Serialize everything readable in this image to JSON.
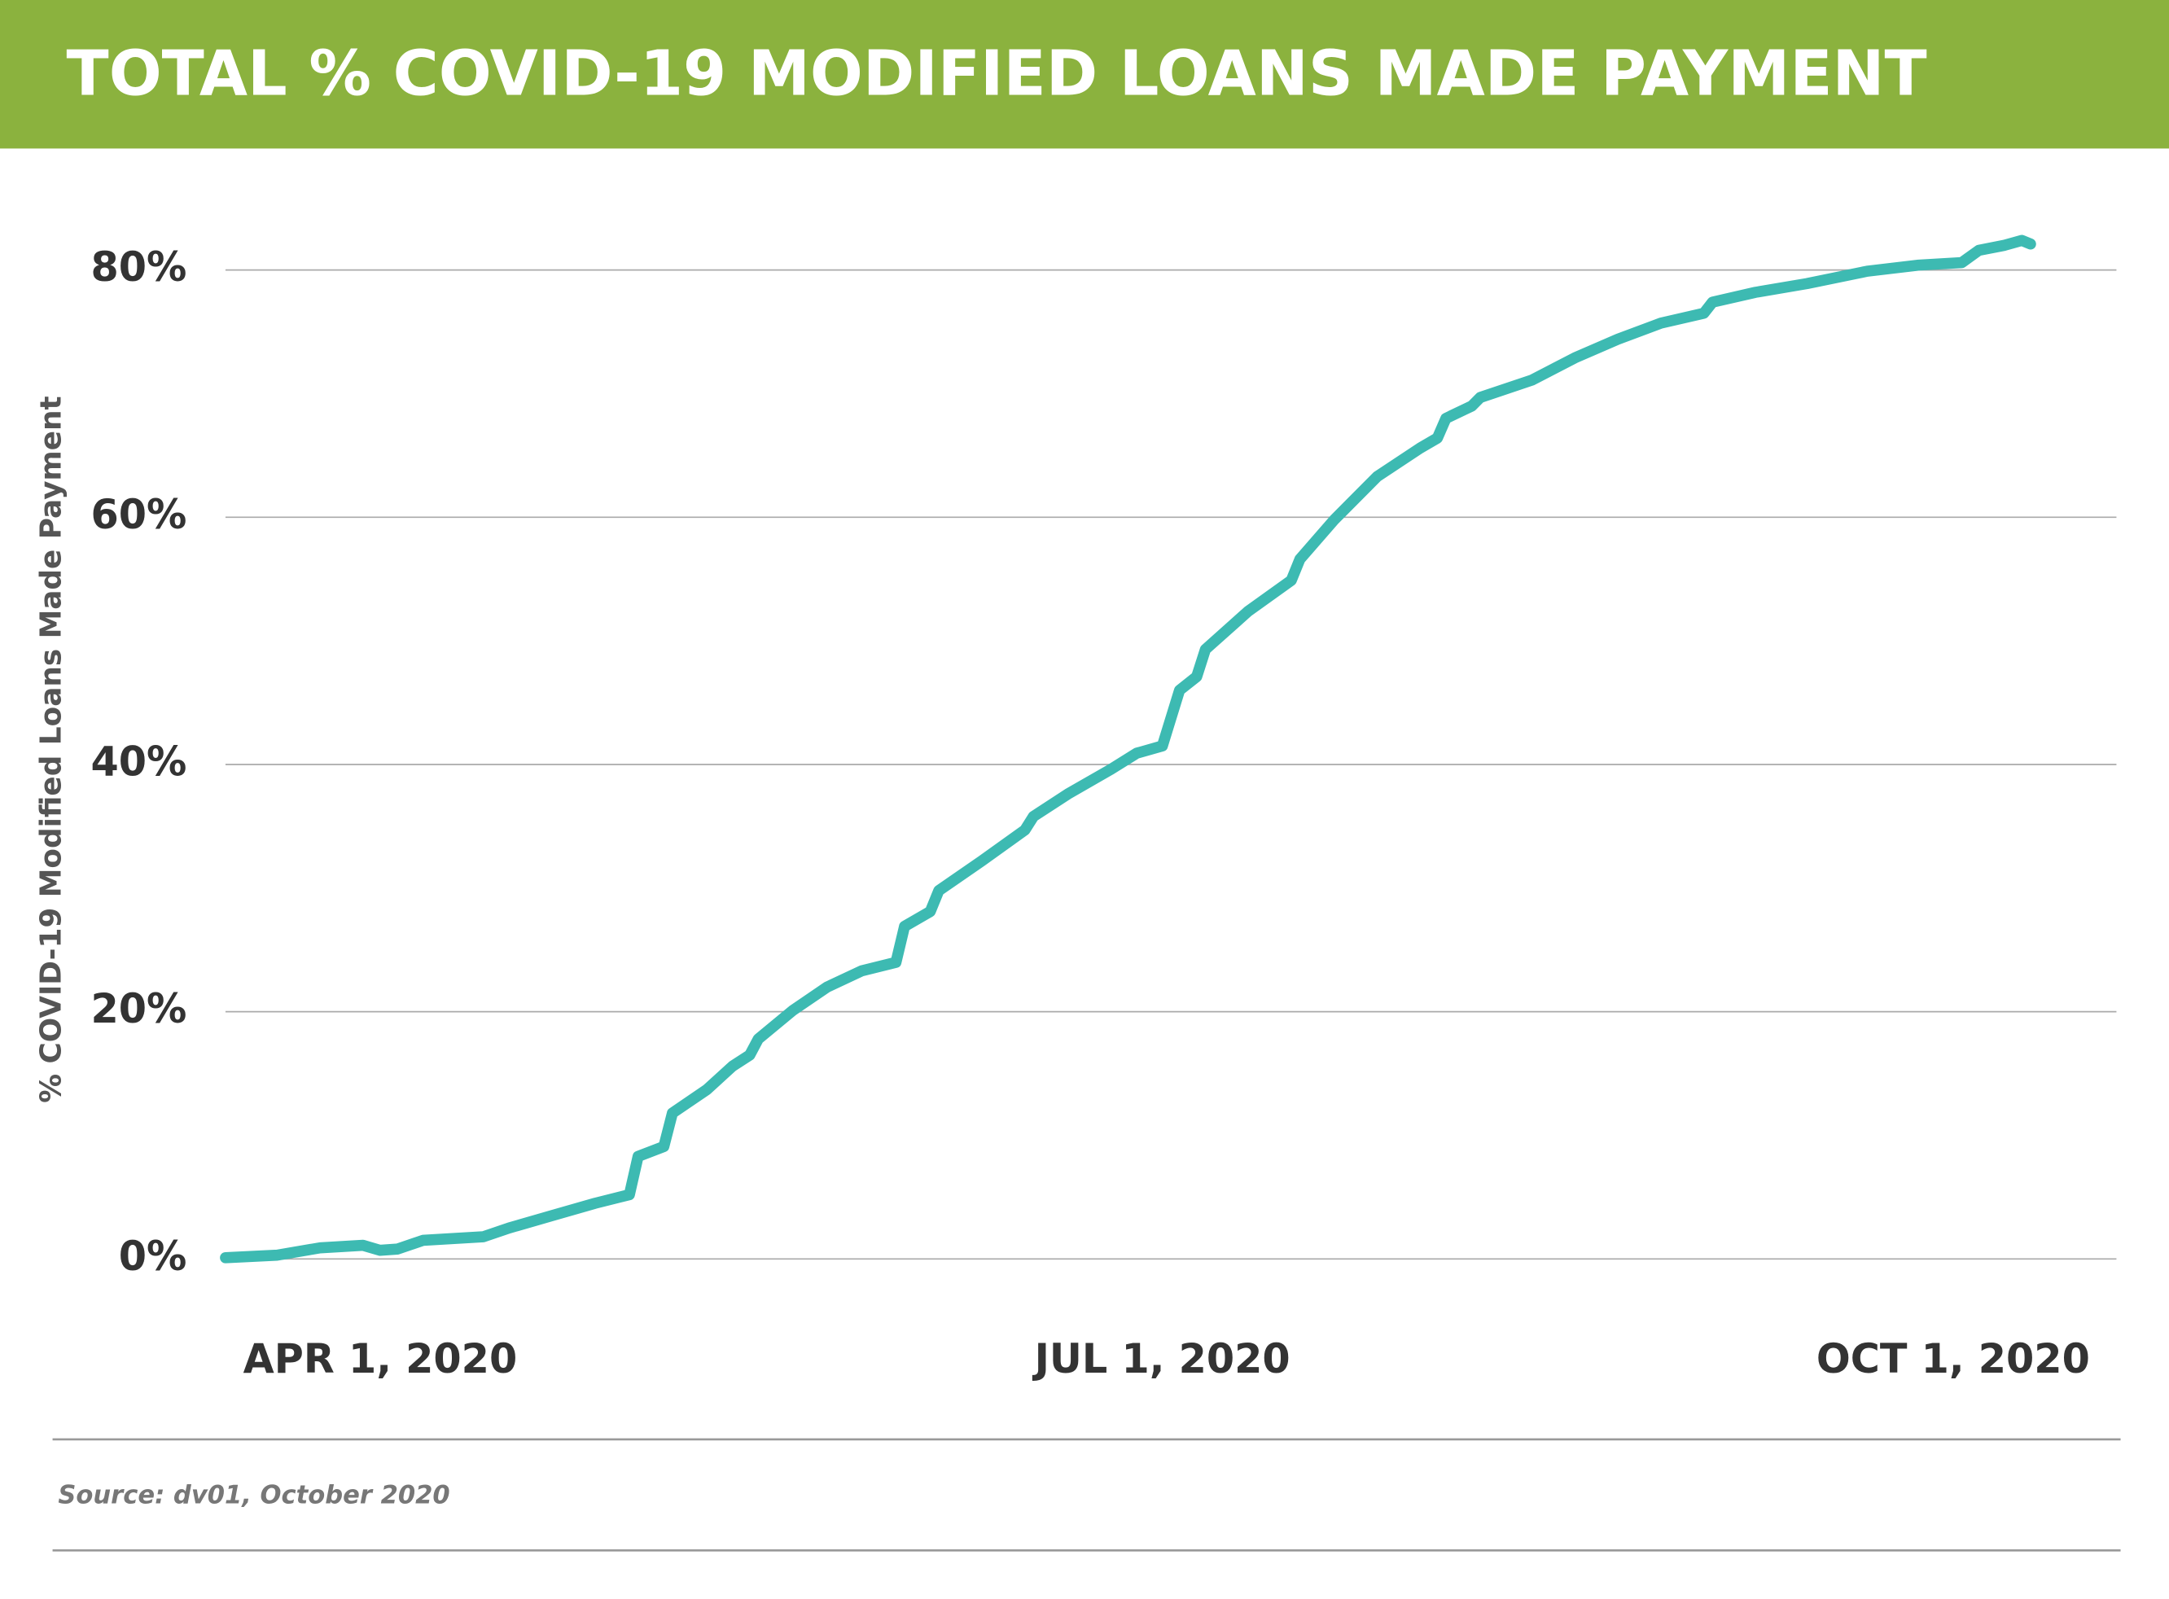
{
  "chart_data": {
    "type": "line",
    "title": "TOTAL % COVID-19 MODIFIED LOANS MADE PAYMENT",
    "ylabel": "% COVID-19 Modified Loans Made Payment",
    "source": "Source: dv01, October 2020",
    "color": "#3dbab2",
    "grid": true,
    "x": [
      "2020-03-14",
      "2020-03-20",
      "2020-03-25",
      "2020-03-30",
      "2020-04-01",
      "2020-04-03",
      "2020-04-06",
      "2020-04-13",
      "2020-04-16",
      "2020-04-21",
      "2020-04-26",
      "2020-04-30",
      "2020-05-01",
      "2020-05-04",
      "2020-05-05",
      "2020-05-09",
      "2020-05-12",
      "2020-05-14",
      "2020-05-15",
      "2020-05-19",
      "2020-05-23",
      "2020-05-27",
      "2020-05-31",
      "2020-06-01",
      "2020-06-04",
      "2020-06-05",
      "2020-06-10",
      "2020-06-15",
      "2020-06-16",
      "2020-06-20",
      "2020-06-25",
      "2020-06-28",
      "2020-07-01",
      "2020-07-03",
      "2020-07-05",
      "2020-07-06",
      "2020-07-11",
      "2020-07-16",
      "2020-07-17",
      "2020-07-21",
      "2020-07-26",
      "2020-07-31",
      "2020-08-02",
      "2020-08-03",
      "2020-08-06",
      "2020-08-07",
      "2020-08-13",
      "2020-08-18",
      "2020-08-23",
      "2020-08-28",
      "2020-09-02",
      "2020-09-03",
      "2020-09-08",
      "2020-09-14",
      "2020-09-21",
      "2020-09-27",
      "2020-10-02",
      "2020-10-04",
      "2020-10-07",
      "2020-10-09",
      "2020-10-10"
    ],
    "values": [
      0.1,
      0.3,
      0.9,
      1.1,
      0.7,
      0.8,
      1.5,
      1.8,
      2.5,
      3.5,
      4.5,
      5.2,
      8.3,
      9.1,
      11.8,
      13.7,
      15.6,
      16.5,
      17.8,
      20.1,
      22.0,
      23.3,
      24.0,
      26.9,
      28.1,
      29.8,
      32.2,
      34.7,
      35.8,
      37.6,
      39.6,
      40.9,
      41.5,
      46.0,
      47.1,
      49.3,
      52.4,
      54.9,
      56.6,
      59.8,
      63.3,
      65.6,
      66.4,
      68.0,
      69.0,
      69.7,
      71.1,
      72.9,
      74.4,
      75.7,
      76.5,
      77.4,
      78.2,
      78.9,
      79.9,
      80.4,
      80.6,
      81.6,
      82.0,
      82.4,
      82.1
    ],
    "xlim": [
      "2020-03-14",
      "2020-10-20"
    ],
    "xticks": [
      {
        "value": "2020-04-01",
        "label": "APR 1, 2020"
      },
      {
        "value": "2020-07-01",
        "label": "JUL 1, 2020"
      },
      {
        "value": "2020-10-01",
        "label": "OCT 1, 2020"
      }
    ],
    "ylim": [
      0,
      85
    ],
    "yticks": [
      {
        "value": 0,
        "label": "0%"
      },
      {
        "value": 20,
        "label": "20%"
      },
      {
        "value": 40,
        "label": "40%"
      },
      {
        "value": 60,
        "label": "60%"
      },
      {
        "value": 80,
        "label": "80%"
      }
    ]
  }
}
